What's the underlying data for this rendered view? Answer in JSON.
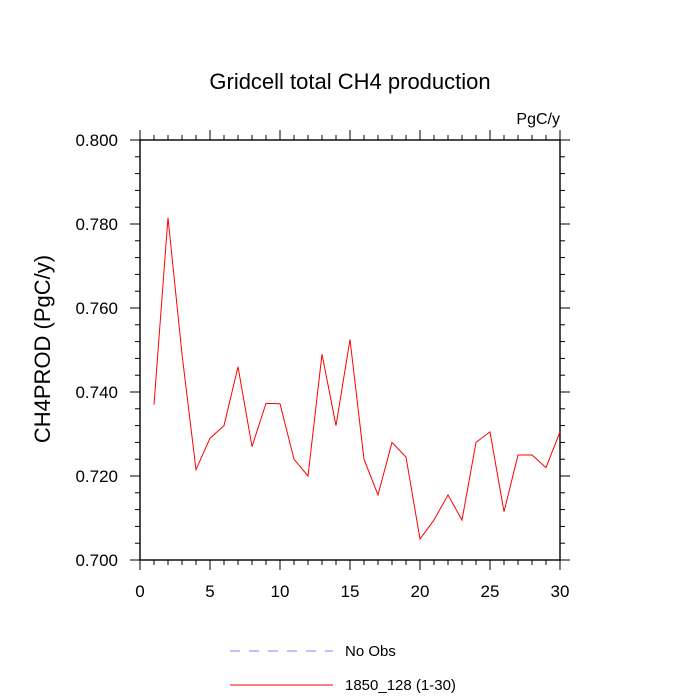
{
  "chart_data": {
    "type": "line",
    "title": "Gridcell total CH4 production",
    "units_label": "PgC/y",
    "ylabel": "CH4PROD  (PgC/y)",
    "xlabel": "",
    "xlim": [
      0,
      30
    ],
    "ylim": [
      0.7,
      0.8
    ],
    "x_ticks": [
      0,
      5,
      10,
      15,
      20,
      25,
      30
    ],
    "x_tick_labels": [
      "0",
      "5",
      "10",
      "15",
      "20",
      "25",
      "30"
    ],
    "x_minor_step": 1,
    "y_ticks": [
      0.7,
      0.72,
      0.74,
      0.76,
      0.78,
      0.8
    ],
    "y_tick_labels": [
      "0.700",
      "0.720",
      "0.740",
      "0.760",
      "0.780",
      "0.800"
    ],
    "y_minor_step": 0.004,
    "grid": false,
    "legend_position": "bottom",
    "series": [
      {
        "name": "No Obs",
        "color": "#8080ff",
        "style": "dashed",
        "x": [],
        "values": []
      },
      {
        "name": "1850_128 (1-30)",
        "color": "#ff0000",
        "style": "solid",
        "x": [
          1,
          2,
          3,
          4,
          5,
          6,
          7,
          8,
          9,
          10,
          11,
          12,
          13,
          14,
          15,
          16,
          17,
          18,
          19,
          20,
          21,
          22,
          23,
          24,
          25,
          26,
          27,
          28,
          29,
          30
        ],
        "values": [
          0.737,
          0.7815,
          0.749,
          0.7215,
          0.729,
          0.732,
          0.746,
          0.727,
          0.7373,
          0.7372,
          0.724,
          0.72,
          0.749,
          0.732,
          0.7525,
          0.724,
          0.7155,
          0.728,
          0.7245,
          0.705,
          0.7095,
          0.7155,
          0.7095,
          0.728,
          0.7305,
          0.7115,
          0.725,
          0.725,
          0.722,
          0.7305
        ]
      }
    ]
  }
}
